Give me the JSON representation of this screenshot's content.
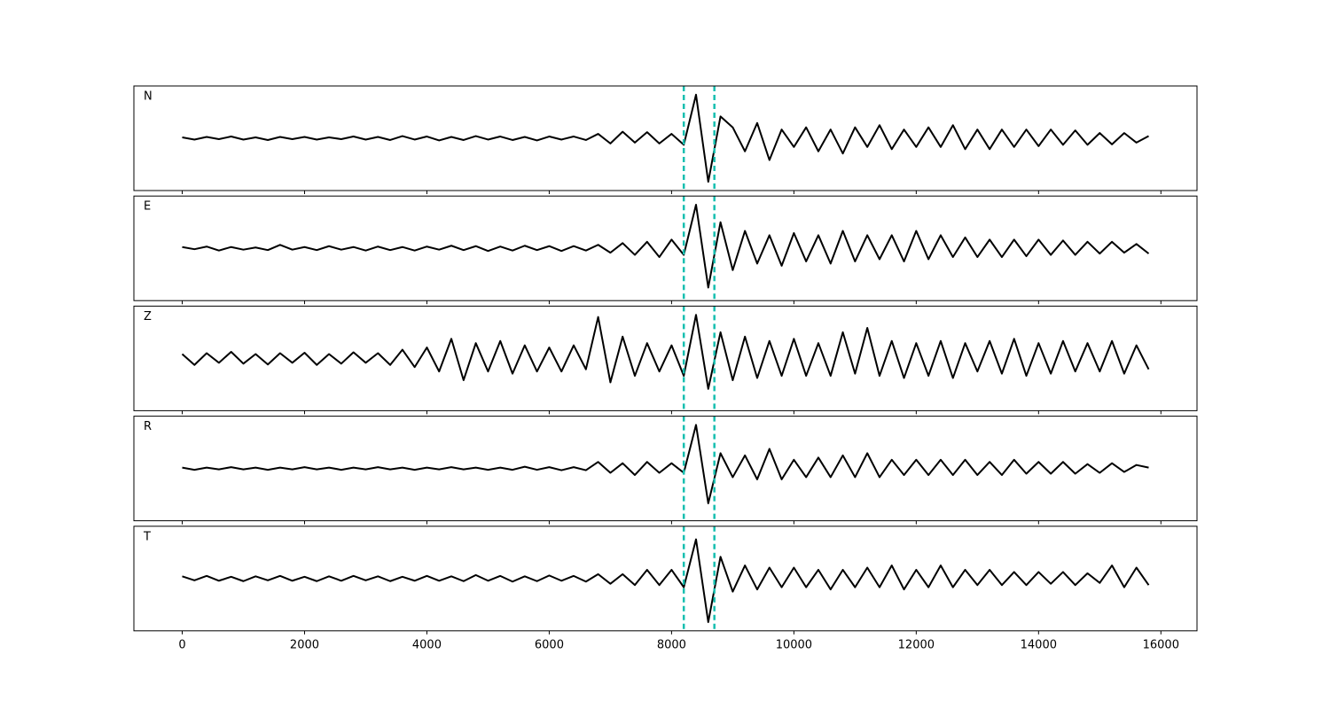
{
  "chart_data": {
    "type": "line",
    "x": [
      0,
      200,
      400,
      600,
      800,
      1000,
      1200,
      1400,
      1600,
      1800,
      2000,
      2200,
      2400,
      2600,
      2800,
      3000,
      3200,
      3400,
      3600,
      3800,
      4000,
      4200,
      4400,
      4600,
      4800,
      5000,
      5200,
      5400,
      5600,
      5800,
      6000,
      6200,
      6400,
      6600,
      6800,
      7000,
      7200,
      7400,
      7600,
      7800,
      8000,
      8200,
      8400,
      8600,
      8800,
      9000,
      9200,
      9400,
      9600,
      9800,
      10000,
      10200,
      10400,
      10600,
      10800,
      11000,
      11200,
      11400,
      11600,
      11800,
      12000,
      12200,
      12400,
      12600,
      12800,
      13000,
      13200,
      13400,
      13600,
      13800,
      14000,
      14200,
      14400,
      14600,
      14800,
      15000,
      15200,
      15400,
      15600,
      15800
    ],
    "series": [
      {
        "name": "N",
        "color": "#000000",
        "values": [
          0.02,
          -0.03,
          0.03,
          -0.02,
          0.04,
          -0.03,
          0.02,
          -0.04,
          0.03,
          -0.02,
          0.03,
          -0.03,
          0.02,
          -0.02,
          0.04,
          -0.03,
          0.03,
          -0.04,
          0.05,
          -0.03,
          0.04,
          -0.05,
          0.03,
          -0.04,
          0.05,
          -0.03,
          0.04,
          -0.04,
          0.03,
          -0.05,
          0.04,
          -0.03,
          0.04,
          -0.04,
          0.1,
          -0.12,
          0.15,
          -0.1,
          0.14,
          -0.12,
          0.1,
          -0.15,
          1.0,
          -1.0,
          0.5,
          0.25,
          -0.3,
          0.35,
          -0.5,
          0.2,
          -0.2,
          0.25,
          -0.3,
          0.2,
          -0.35,
          0.25,
          -0.2,
          0.3,
          -0.25,
          0.2,
          -0.2,
          0.25,
          -0.2,
          0.3,
          -0.25,
          0.2,
          -0.25,
          0.2,
          -0.2,
          0.2,
          -0.18,
          0.2,
          -0.15,
          0.18,
          -0.15,
          0.12,
          -0.14,
          0.12,
          -0.1,
          0.05
        ]
      },
      {
        "name": "E",
        "color": "#000000",
        "values": [
          0.03,
          -0.02,
          0.04,
          -0.05,
          0.03,
          -0.03,
          0.02,
          -0.04,
          0.08,
          -0.03,
          0.03,
          -0.04,
          0.05,
          -0.03,
          0.03,
          -0.05,
          0.04,
          -0.04,
          0.03,
          -0.05,
          0.04,
          -0.03,
          0.06,
          -0.04,
          0.05,
          -0.06,
          0.04,
          -0.05,
          0.06,
          -0.04,
          0.05,
          -0.06,
          0.05,
          -0.05,
          0.08,
          -0.1,
          0.12,
          -0.15,
          0.15,
          -0.2,
          0.2,
          -0.15,
          1.0,
          -0.9,
          0.6,
          -0.5,
          0.4,
          -0.35,
          0.3,
          -0.4,
          0.35,
          -0.3,
          0.3,
          -0.35,
          0.4,
          -0.3,
          0.3,
          -0.25,
          0.3,
          -0.3,
          0.4,
          -0.25,
          0.3,
          -0.2,
          0.25,
          -0.2,
          0.2,
          -0.2,
          0.2,
          -0.18,
          0.2,
          -0.15,
          0.18,
          -0.15,
          0.15,
          -0.12,
          0.15,
          -0.1,
          0.1,
          -0.12
        ]
      },
      {
        "name": "Z",
        "color": "#000000",
        "values": [
          0.1,
          -0.15,
          0.12,
          -0.1,
          0.15,
          -0.12,
          0.1,
          -0.14,
          0.12,
          -0.1,
          0.13,
          -0.15,
          0.1,
          -0.12,
          0.14,
          -0.1,
          0.12,
          -0.15,
          0.2,
          -0.2,
          0.25,
          -0.3,
          0.45,
          -0.5,
          0.35,
          -0.3,
          0.4,
          -0.35,
          0.3,
          -0.3,
          0.25,
          -0.3,
          0.3,
          -0.25,
          0.95,
          -0.55,
          0.5,
          -0.4,
          0.35,
          -0.3,
          0.3,
          -0.4,
          1.0,
          -0.7,
          0.6,
          -0.5,
          0.5,
          -0.45,
          0.4,
          -0.4,
          0.45,
          -0.4,
          0.35,
          -0.4,
          0.6,
          -0.35,
          0.7,
          -0.4,
          0.4,
          -0.45,
          0.35,
          -0.4,
          0.4,
          -0.45,
          0.35,
          -0.3,
          0.4,
          -0.35,
          0.45,
          -0.4,
          0.35,
          -0.35,
          0.4,
          -0.3,
          0.35,
          -0.3,
          0.4,
          -0.35,
          0.3,
          -0.25
        ]
      },
      {
        "name": "R",
        "color": "#000000",
        "values": [
          0.02,
          -0.03,
          0.02,
          -0.02,
          0.03,
          -0.02,
          0.02,
          -0.03,
          0.02,
          -0.02,
          0.03,
          -0.02,
          0.02,
          -0.03,
          0.02,
          -0.02,
          0.03,
          -0.02,
          0.02,
          -0.03,
          0.02,
          -0.02,
          0.03,
          -0.02,
          0.02,
          -0.03,
          0.02,
          -0.03,
          0.04,
          -0.03,
          0.03,
          -0.04,
          0.03,
          -0.04,
          0.15,
          -0.1,
          0.12,
          -0.15,
          0.15,
          -0.1,
          0.12,
          -0.1,
          1.0,
          -0.8,
          0.35,
          -0.2,
          0.3,
          -0.25,
          0.45,
          -0.25,
          0.2,
          -0.2,
          0.25,
          -0.2,
          0.3,
          -0.2,
          0.35,
          -0.2,
          0.2,
          -0.15,
          0.2,
          -0.15,
          0.2,
          -0.15,
          0.2,
          -0.15,
          0.15,
          -0.15,
          0.2,
          -0.12,
          0.15,
          -0.12,
          0.15,
          -0.12,
          0.1,
          -0.1,
          0.12,
          -0.08,
          0.08,
          0.02
        ]
      },
      {
        "name": "T",
        "color": "#000000",
        "values": [
          0.05,
          -0.04,
          0.06,
          -0.05,
          0.04,
          -0.06,
          0.05,
          -0.04,
          0.06,
          -0.05,
          0.04,
          -0.06,
          0.05,
          -0.05,
          0.06,
          -0.04,
          0.05,
          -0.06,
          0.04,
          -0.05,
          0.06,
          -0.05,
          0.05,
          -0.06,
          0.08,
          -0.05,
          0.06,
          -0.07,
          0.05,
          -0.06,
          0.07,
          -0.05,
          0.06,
          -0.07,
          0.1,
          -0.12,
          0.1,
          -0.15,
          0.2,
          -0.15,
          0.2,
          -0.2,
          0.9,
          -1.0,
          0.5,
          -0.3,
          0.3,
          -0.25,
          0.25,
          -0.2,
          0.25,
          -0.2,
          0.2,
          -0.25,
          0.2,
          -0.2,
          0.25,
          -0.2,
          0.3,
          -0.25,
          0.2,
          -0.2,
          0.3,
          -0.2,
          0.2,
          -0.15,
          0.2,
          -0.15,
          0.15,
          -0.15,
          0.15,
          -0.12,
          0.15,
          -0.15,
          0.12,
          -0.1,
          0.3,
          -0.2,
          0.25,
          -0.15
        ]
      }
    ],
    "xlim": [
      -790,
      16590
    ],
    "xticks": [
      0,
      2000,
      4000,
      6000,
      8000,
      10000,
      12000,
      14000,
      16000
    ],
    "ylim": [
      -1.2,
      1.2
    ],
    "vlines": [
      8200,
      8700
    ],
    "vline_color": "#17bfb0"
  }
}
